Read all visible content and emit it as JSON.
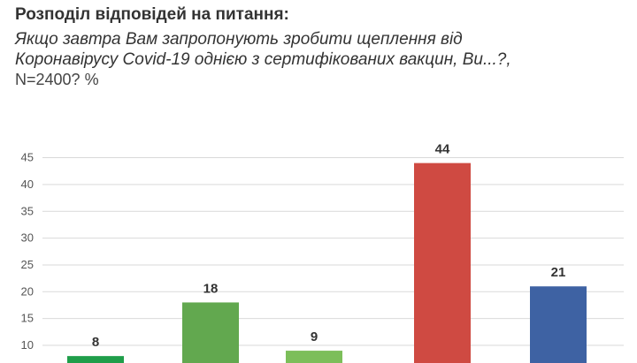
{
  "title": "Розподіл відповідей на питання:",
  "subtitle_lines": [
    "Якщо завтра Вам запропонують зробити щеплення від",
    "Коронавірусу Covid-19 однією з сертифікованих вакцин, Ви...?,"
  ],
  "note": "N=2400? %",
  "chart_data": {
    "type": "bar",
    "title": "",
    "xlabel": "",
    "ylabel": "",
    "categories": [
      "",
      "",
      "",
      "",
      ""
    ],
    "values": [
      8,
      18,
      9,
      44,
      21
    ],
    "colors": [
      "#1f9e4a",
      "#62a84f",
      "#7cbe5a",
      "#cf4a42",
      "#3e62a3"
    ],
    "y_ticks": [
      10,
      15,
      20,
      25,
      30,
      35,
      40,
      45
    ],
    "ylim": [
      5,
      47
    ],
    "grid": true,
    "legend": "none"
  }
}
